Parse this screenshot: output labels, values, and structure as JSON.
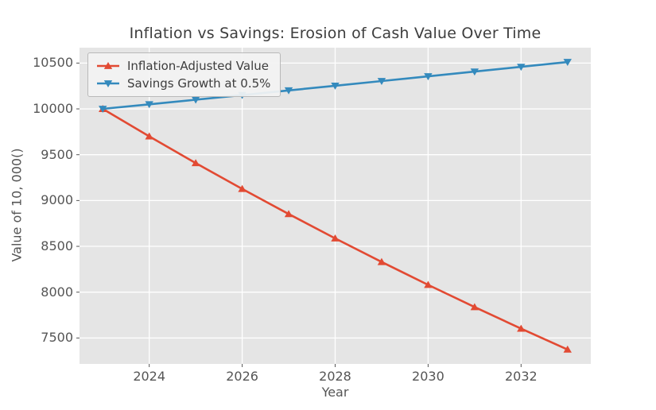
{
  "figure": {
    "title": "Inflation vs Savings: Erosion of Cash Value Over Time",
    "xlabel": "Year",
    "ylabel": "Value of 10, 000()"
  },
  "legend": {
    "items": [
      {
        "label": "Inflation-Adjusted Value",
        "color": "#E24A33",
        "marker": "triangle-up"
      },
      {
        "label": "Savings Growth at 0.5%",
        "color": "#348ABD",
        "marker": "triangle-down"
      }
    ]
  },
  "colors": {
    "figure_bg": "#FFFFFF",
    "plot_bg": "#E5E5E5",
    "grid": "#FFFFFF",
    "tick": "#555555",
    "tick_text": "#555555",
    "title_text": "#3D3D3D",
    "red": "#E24A33",
    "blue": "#348ABD"
  },
  "chart_data": {
    "type": "line",
    "title": "Inflation vs Savings: Erosion of Cash Value Over Time",
    "xlabel": "Year",
    "ylabel": "Value of 10, 000()",
    "x": [
      2023,
      2024,
      2025,
      2026,
      2027,
      2028,
      2029,
      2030,
      2031,
      2032,
      2033
    ],
    "series": [
      {
        "name": "Inflation-Adjusted Value",
        "color": "#E24A33",
        "marker": "triangle-up",
        "values": [
          10000,
          9700,
          9409,
          9126.73,
          8852.93,
          8587.34,
          8329.72,
          8079.83,
          7837.43,
          7602.31,
          7374.24
        ]
      },
      {
        "name": "Savings Growth at 0.5%",
        "color": "#348ABD",
        "marker": "triangle-down",
        "values": [
          10000,
          10050,
          10100.25,
          10150.75,
          10201.51,
          10252.51,
          10303.78,
          10355.29,
          10407.07,
          10459.11,
          10511.4
        ]
      }
    ],
    "xlim": [
      2022.5,
      2033.5
    ],
    "ylim": [
      7217,
      10668
    ],
    "xticks": [
      2024,
      2026,
      2028,
      2030,
      2032
    ],
    "yticks": [
      7500,
      8000,
      8500,
      9000,
      9500,
      10000,
      10500
    ],
    "grid": true,
    "legend_position": "upper left",
    "style": "ggplot"
  }
}
